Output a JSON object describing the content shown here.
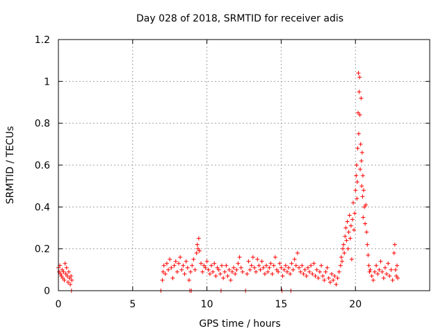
{
  "chart_data": {
    "type": "scatter",
    "title": "Day 028 of 2018, SRMTID for receiver adis",
    "xlabel": "GPS time / hours",
    "ylabel": "SRMTID / TECUs",
    "xlim": [
      0,
      25
    ],
    "ylim": [
      0,
      1.2
    ],
    "x_ticks": [
      0,
      5,
      10,
      15,
      20
    ],
    "x_tick_labels": [
      "0",
      "5",
      "10",
      "15",
      "20"
    ],
    "y_ticks": [
      0,
      0.2,
      0.4,
      0.6,
      0.8,
      1.0,
      1.2
    ],
    "y_tick_labels": [
      "0",
      "0.2",
      "0.4",
      "0.6",
      "0.8",
      "1",
      "1.2"
    ],
    "grid": true,
    "marker": "+",
    "color": "#ff0000",
    "series": [
      {
        "name": "SRMTID",
        "points": [
          [
            0.0,
            0.11
          ],
          [
            0.05,
            0.09
          ],
          [
            0.1,
            0.12
          ],
          [
            0.15,
            0.08
          ],
          [
            0.2,
            0.07
          ],
          [
            0.25,
            0.1
          ],
          [
            0.3,
            0.06
          ],
          [
            0.35,
            0.09
          ],
          [
            0.4,
            0.05
          ],
          [
            0.45,
            0.13
          ],
          [
            0.5,
            0.08
          ],
          [
            0.55,
            0.11
          ],
          [
            0.6,
            0.07
          ],
          [
            0.65,
            0.04
          ],
          [
            0.7,
            0.09
          ],
          [
            0.75,
            0.06
          ],
          [
            0.8,
            0.03
          ],
          [
            0.85,
            0.07
          ],
          [
            0.9,
            0.05
          ],
          [
            0.88,
            0.0
          ],
          [
            6.9,
            0.0
          ],
          [
            7.0,
            0.05
          ],
          [
            7.05,
            0.09
          ],
          [
            7.1,
            0.12
          ],
          [
            7.2,
            0.08
          ],
          [
            7.3,
            0.13
          ],
          [
            7.4,
            0.1
          ],
          [
            7.5,
            0.15
          ],
          [
            7.6,
            0.11
          ],
          [
            7.7,
            0.06
          ],
          [
            7.8,
            0.12
          ],
          [
            7.9,
            0.14
          ],
          [
            8.0,
            0.09
          ],
          [
            8.1,
            0.13
          ],
          [
            8.2,
            0.16
          ],
          [
            8.3,
            0.1
          ],
          [
            8.4,
            0.12
          ],
          [
            8.5,
            0.08
          ],
          [
            8.6,
            0.14
          ],
          [
            8.7,
            0.11
          ],
          [
            8.8,
            0.05
          ],
          [
            8.85,
            0.0
          ],
          [
            8.9,
            0.09
          ],
          [
            8.95,
            0.0
          ],
          [
            9.0,
            0.12
          ],
          [
            9.1,
            0.15
          ],
          [
            9.2,
            0.1
          ],
          [
            9.3,
            0.18
          ],
          [
            9.35,
            0.22
          ],
          [
            9.4,
            0.2
          ],
          [
            9.45,
            0.25
          ],
          [
            9.5,
            0.19
          ],
          [
            9.6,
            0.13
          ],
          [
            9.7,
            0.09
          ],
          [
            9.8,
            0.12
          ],
          [
            9.9,
            0.11
          ],
          [
            10.0,
            0.14
          ],
          [
            10.1,
            0.1
          ],
          [
            10.2,
            0.08
          ],
          [
            10.3,
            0.12
          ],
          [
            10.4,
            0.09
          ],
          [
            10.5,
            0.13
          ],
          [
            10.6,
            0.07
          ],
          [
            10.7,
            0.11
          ],
          [
            10.8,
            0.1
          ],
          [
            10.9,
            0.08
          ],
          [
            10.95,
            0.0
          ],
          [
            11.0,
            0.12
          ],
          [
            11.1,
            0.06
          ],
          [
            11.2,
            0.09
          ],
          [
            11.3,
            0.12
          ],
          [
            11.4,
            0.07
          ],
          [
            11.5,
            0.1
          ],
          [
            11.6,
            0.05
          ],
          [
            11.7,
            0.09
          ],
          [
            11.8,
            0.11
          ],
          [
            11.9,
            0.08
          ],
          [
            12.0,
            0.1
          ],
          [
            12.1,
            0.13
          ],
          [
            12.2,
            0.16
          ],
          [
            12.3,
            0.11
          ],
          [
            12.4,
            0.09
          ],
          [
            12.6,
            0.0
          ],
          [
            12.7,
            0.08
          ],
          [
            12.8,
            0.14
          ],
          [
            12.9,
            0.1
          ],
          [
            13.0,
            0.12
          ],
          [
            13.1,
            0.16
          ],
          [
            13.2,
            0.11
          ],
          [
            13.3,
            0.09
          ],
          [
            13.4,
            0.15
          ],
          [
            13.5,
            0.12
          ],
          [
            13.6,
            0.1
          ],
          [
            13.7,
            0.14
          ],
          [
            13.8,
            0.11
          ],
          [
            13.9,
            0.08
          ],
          [
            14.0,
            0.12
          ],
          [
            14.1,
            0.09
          ],
          [
            14.2,
            0.11
          ],
          [
            14.3,
            0.13
          ],
          [
            14.4,
            0.08
          ],
          [
            14.5,
            0.12
          ],
          [
            14.6,
            0.16
          ],
          [
            14.7,
            0.1
          ],
          [
            14.8,
            0.09
          ],
          [
            14.9,
            0.13
          ],
          [
            15.0,
            0.11
          ],
          [
            15.05,
            0.0
          ],
          [
            15.1,
            0.07
          ],
          [
            15.2,
            0.1
          ],
          [
            15.3,
            0.12
          ],
          [
            15.4,
            0.09
          ],
          [
            15.5,
            0.11
          ],
          [
            15.6,
            0.08
          ],
          [
            15.65,
            0.0
          ],
          [
            15.7,
            0.13
          ],
          [
            15.8,
            0.1
          ],
          [
            15.9,
            0.15
          ],
          [
            16.0,
            0.12
          ],
          [
            16.1,
            0.18
          ],
          [
            16.2,
            0.11
          ],
          [
            16.3,
            0.09
          ],
          [
            16.4,
            0.12
          ],
          [
            16.5,
            0.08
          ],
          [
            16.6,
            0.1
          ],
          [
            16.7,
            0.07
          ],
          [
            16.8,
            0.11
          ],
          [
            16.9,
            0.09
          ],
          [
            17.0,
            0.12
          ],
          [
            17.1,
            0.08
          ],
          [
            17.2,
            0.13
          ],
          [
            17.3,
            0.07
          ],
          [
            17.4,
            0.1
          ],
          [
            17.5,
            0.06
          ],
          [
            17.6,
            0.09
          ],
          [
            17.7,
            0.12
          ],
          [
            17.8,
            0.07
          ],
          [
            17.9,
            0.05
          ],
          [
            18.0,
            0.09
          ],
          [
            18.1,
            0.11
          ],
          [
            18.2,
            0.06
          ],
          [
            18.3,
            0.04
          ],
          [
            18.4,
            0.08
          ],
          [
            18.5,
            0.05
          ],
          [
            18.6,
            0.07
          ],
          [
            18.7,
            0.03
          ],
          [
            18.8,
            0.06
          ],
          [
            18.9,
            0.09
          ],
          [
            19.0,
            0.12
          ],
          [
            19.05,
            0.16
          ],
          [
            19.1,
            0.14
          ],
          [
            19.15,
            0.2
          ],
          [
            19.2,
            0.22
          ],
          [
            19.25,
            0.18
          ],
          [
            19.3,
            0.26
          ],
          [
            19.35,
            0.3
          ],
          [
            19.4,
            0.24
          ],
          [
            19.45,
            0.33
          ],
          [
            19.5,
            0.2
          ],
          [
            19.55,
            0.28
          ],
          [
            19.6,
            0.36
          ],
          [
            19.65,
            0.25
          ],
          [
            19.7,
            0.31
          ],
          [
            19.75,
            0.15
          ],
          [
            19.8,
            0.34
          ],
          [
            19.85,
            0.42
          ],
          [
            19.9,
            0.29
          ],
          [
            19.95,
            0.37
          ],
          [
            20.0,
            0.48
          ],
          [
            20.05,
            0.55
          ],
          [
            20.08,
            0.6
          ],
          [
            20.1,
            0.44
          ],
          [
            20.12,
            0.52
          ],
          [
            20.15,
            0.68
          ],
          [
            20.18,
            0.85
          ],
          [
            20.2,
            1.04
          ],
          [
            20.22,
            0.75
          ],
          [
            20.25,
            0.95
          ],
          [
            20.28,
            1.02
          ],
          [
            20.3,
            0.84
          ],
          [
            20.32,
            0.58
          ],
          [
            20.35,
            0.7
          ],
          [
            20.38,
            0.92
          ],
          [
            20.4,
            0.62
          ],
          [
            20.42,
            0.5
          ],
          [
            20.45,
            0.66
          ],
          [
            20.48,
            0.45
          ],
          [
            20.5,
            0.55
          ],
          [
            20.52,
            0.35
          ],
          [
            20.55,
            0.48
          ],
          [
            20.6,
            0.4
          ],
          [
            20.65,
            0.32
          ],
          [
            20.7,
            0.41
          ],
          [
            20.75,
            0.28
          ],
          [
            20.8,
            0.22
          ],
          [
            20.85,
            0.17
          ],
          [
            20.9,
            0.12
          ],
          [
            20.95,
            0.09
          ],
          [
            21.0,
            0.1
          ],
          [
            21.1,
            0.07
          ],
          [
            21.2,
            0.05
          ],
          [
            21.3,
            0.09
          ],
          [
            21.4,
            0.12
          ],
          [
            21.5,
            0.08
          ],
          [
            21.6,
            0.1
          ],
          [
            21.7,
            0.14
          ],
          [
            21.8,
            0.09
          ],
          [
            21.9,
            0.06
          ],
          [
            22.0,
            0.11
          ],
          [
            22.1,
            0.08
          ],
          [
            22.2,
            0.13
          ],
          [
            22.3,
            0.07
          ],
          [
            22.4,
            0.1
          ],
          [
            22.5,
            0.05
          ],
          [
            22.6,
            0.18
          ],
          [
            22.65,
            0.22
          ],
          [
            22.7,
            0.1
          ],
          [
            22.75,
            0.07
          ],
          [
            22.8,
            0.12
          ],
          [
            22.85,
            0.06
          ]
        ]
      }
    ]
  }
}
